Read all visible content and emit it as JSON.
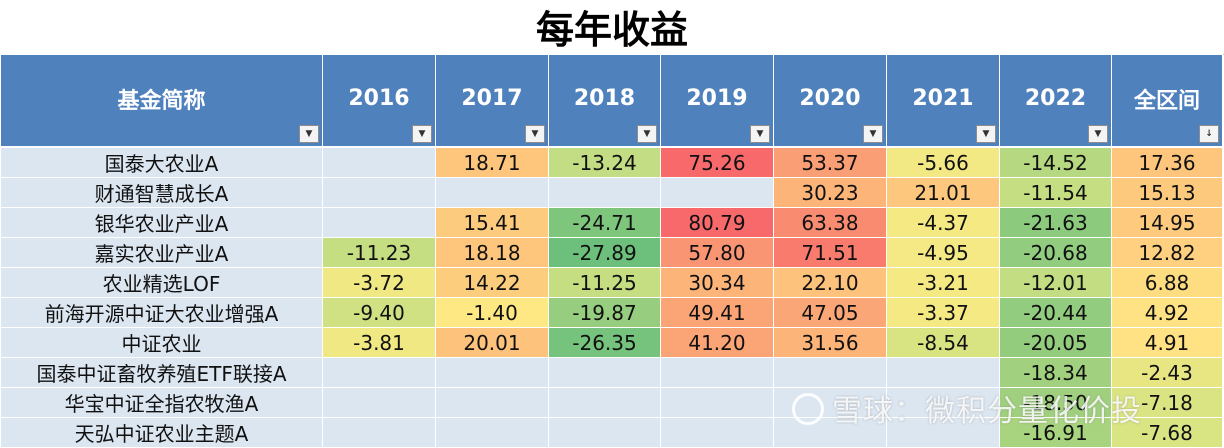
{
  "title": "每年收益",
  "headers": [
    "基金简称",
    "2016",
    "2017",
    "2018",
    "2019",
    "2020",
    "2021",
    "2022",
    "全区间"
  ],
  "filter_icons": [
    "▼",
    "▼",
    "▼",
    "▼",
    "▼",
    "▼",
    "▼",
    "▼",
    "↓"
  ],
  "rows": [
    {
      "name": "国泰大农业A",
      "cells": [
        "",
        "18.71",
        "-13.24",
        "75.26",
        "53.37",
        "-5.66",
        "-14.52",
        "17.36"
      ],
      "colors": [
        "",
        "#fdc67c",
        "#c2dd83",
        "#f8696b",
        "#fa9e75",
        "#f3e984",
        "#b5d880",
        "#fdc67c"
      ]
    },
    {
      "name": "财通智慧成长A",
      "cells": [
        "",
        "",
        "",
        "",
        "30.23",
        "21.01",
        "-11.54",
        "15.13"
      ],
      "colors": [
        "",
        "",
        "",
        "",
        "#fcb479",
        "#fdc77d",
        "#c5de82",
        "#fdc97d"
      ]
    },
    {
      "name": "银华农业产业A",
      "cells": [
        "",
        "15.41",
        "-24.71",
        "80.79",
        "63.38",
        "-4.37",
        "-21.63",
        "14.95"
      ],
      "colors": [
        "",
        "#fdcb7d",
        "#7ec67c",
        "#f8696b",
        "#f98b71",
        "#f5e984",
        "#8cca7d",
        "#fdca7e"
      ]
    },
    {
      "name": "嘉实农业产业A",
      "cells": [
        "-11.23",
        "18.18",
        "-27.89",
        "57.80",
        "71.51",
        "-4.95",
        "-20.68",
        "12.82"
      ],
      "colors": [
        "#c6de82",
        "#fdc67c",
        "#6cc07b",
        "#fa9573",
        "#f97b6e",
        "#f4e984",
        "#92cc7e",
        "#fed07f"
      ]
    },
    {
      "name": "农业精选LOF",
      "cells": [
        "-3.72",
        "14.22",
        "-11.25",
        "30.34",
        "22.10",
        "-3.21",
        "-12.01",
        "6.88"
      ],
      "colors": [
        "#f0e883",
        "#fdcd7e",
        "#c6de82",
        "#fcb479",
        "#fdc27c",
        "#f5e984",
        "#c2dd82",
        "#fedd81"
      ]
    },
    {
      "name": "前海开源中证大农业增强A",
      "cells": [
        "-9.40",
        "-1.40",
        "-19.87",
        "49.41",
        "47.05",
        "-3.37",
        "-20.44",
        "4.92"
      ],
      "colors": [
        "#cfe182",
        "#fee883",
        "#96cd7e",
        "#fba476",
        "#fba676",
        "#f5e984",
        "#92cc7e",
        "#fee283"
      ]
    },
    {
      "name": "中证农业",
      "cells": [
        "-3.81",
        "20.01",
        "-26.35",
        "41.20",
        "31.56",
        "-8.54",
        "-20.05",
        "4.91"
      ],
      "colors": [
        "#f0e883",
        "#fdc27c",
        "#75c37c",
        "#fba476",
        "#fcb479",
        "#d8e482",
        "#94cc7e",
        "#fee283"
      ]
    },
    {
      "name": "国泰中证畜牧养殖ETF联接A",
      "cells": [
        "",
        "",
        "",
        "",
        "",
        "",
        "-18.34",
        "-2.43"
      ],
      "colors": [
        "",
        "",
        "",
        "",
        "",
        "",
        "#a1d17f",
        "#e7e683"
      ]
    },
    {
      "name": "华宝中证全指农牧渔A",
      "cells": [
        "",
        "",
        "",
        "",
        "",
        "",
        "-18.50",
        "-7.18"
      ],
      "colors": [
        "",
        "",
        "",
        "",
        "",
        "",
        "#a0d07f",
        "#dbe482"
      ]
    },
    {
      "name": "天弘中证农业主题A",
      "cells": [
        "",
        "",
        "",
        "",
        "",
        "",
        "-16.91",
        "-7.68"
      ],
      "colors": [
        "",
        "",
        "",
        "",
        "",
        "",
        "#a9d47f",
        "#d9e482"
      ]
    }
  ],
  "watermark": "雪球：微积分量化价投"
}
